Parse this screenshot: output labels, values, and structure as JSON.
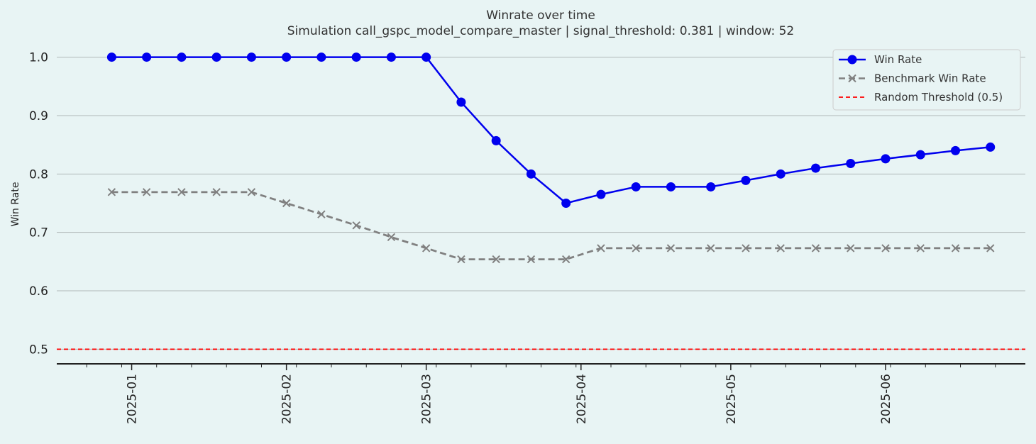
{
  "chart_data": {
    "type": "line",
    "title": "Winrate over time",
    "subtitle": "Simulation call_gspc_model_compare_master | signal_threshold: 0.381 | window: 52",
    "xlabel": "",
    "ylabel": "Win Rate",
    "xlim": [
      "2024-12-17",
      "2025-06-29"
    ],
    "ylim": [
      0.475,
      1.025
    ],
    "y_ticks": [
      "0.5",
      "0.6",
      "0.7",
      "0.8",
      "0.9",
      "1.0"
    ],
    "x_ticks": [
      "2025-01",
      "2025-02",
      "2025-03",
      "2025-04",
      "2025-05",
      "2025-06"
    ],
    "grid": "horizontal",
    "legend_position": "top-right",
    "series": [
      {
        "name": "Win Rate",
        "color": "#0000ee",
        "style": "solid",
        "marker": "circle",
        "x": [
          "2024-12-28",
          "2025-01-04",
          "2025-01-11",
          "2025-01-18",
          "2025-01-25",
          "2025-02-01",
          "2025-02-08",
          "2025-02-15",
          "2025-02-22",
          "2025-03-01",
          "2025-03-08",
          "2025-03-15",
          "2025-03-22",
          "2025-03-29",
          "2025-04-05",
          "2025-04-12",
          "2025-04-19",
          "2025-04-27",
          "2025-05-04",
          "2025-05-11",
          "2025-05-18",
          "2025-05-25",
          "2025-06-01",
          "2025-06-08",
          "2025-06-15",
          "2025-06-22"
        ],
        "y": [
          1.0,
          1.0,
          1.0,
          1.0,
          1.0,
          1.0,
          1.0,
          1.0,
          1.0,
          1.0,
          0.923,
          0.857,
          0.8,
          0.75,
          0.765,
          0.778,
          0.778,
          0.778,
          0.789,
          0.8,
          0.81,
          0.818,
          0.826,
          0.833,
          0.84,
          0.846
        ]
      },
      {
        "name": "Benchmark Win Rate",
        "color": "#808080",
        "style": "dashed",
        "marker": "x",
        "x": [
          "2024-12-28",
          "2025-01-04",
          "2025-01-11",
          "2025-01-18",
          "2025-01-25",
          "2025-02-01",
          "2025-02-08",
          "2025-02-15",
          "2025-02-22",
          "2025-03-01",
          "2025-03-08",
          "2025-03-15",
          "2025-03-22",
          "2025-03-29",
          "2025-04-05",
          "2025-04-12",
          "2025-04-19",
          "2025-04-27",
          "2025-05-04",
          "2025-05-11",
          "2025-05-18",
          "2025-05-25",
          "2025-06-01",
          "2025-06-08",
          "2025-06-15",
          "2025-06-22"
        ],
        "y": [
          0.769,
          0.769,
          0.769,
          0.769,
          0.769,
          0.75,
          0.731,
          0.712,
          0.692,
          0.673,
          0.654,
          0.654,
          0.654,
          0.654,
          0.673,
          0.673,
          0.673,
          0.673,
          0.673,
          0.673,
          0.673,
          0.673,
          0.673,
          0.673,
          0.673,
          0.673
        ]
      },
      {
        "name": "Random Threshold (0.5)",
        "color": "#ff0000",
        "style": "dashed",
        "marker": "none",
        "y_constant": 0.5
      }
    ]
  }
}
